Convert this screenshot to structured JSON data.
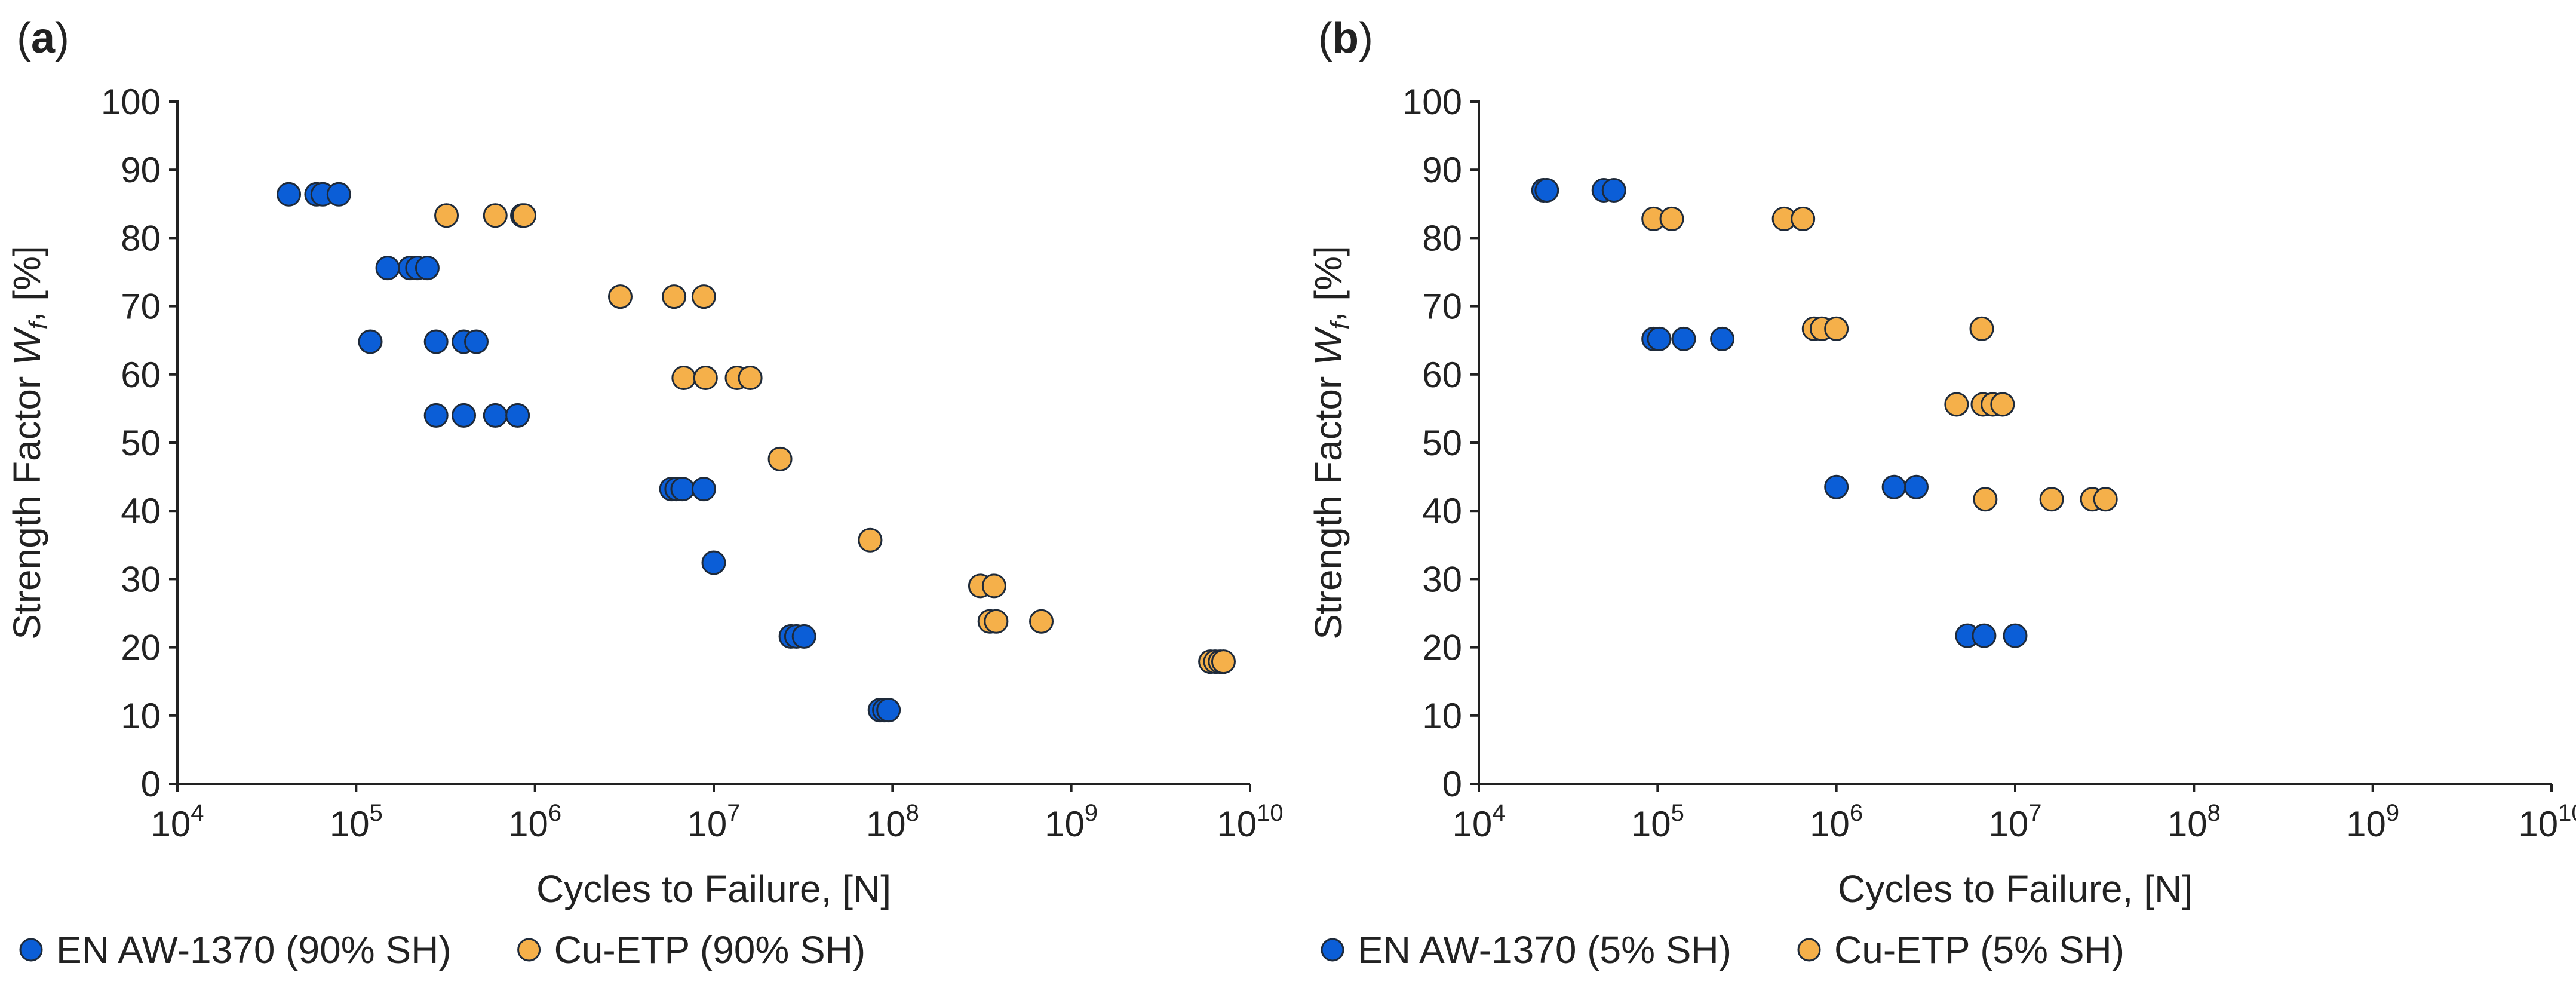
{
  "colors": {
    "aluminium": "#0b5ed7",
    "copper": "#f5b04a",
    "axis": "#222222",
    "marker_edge": "#1e2a3a"
  },
  "chart_data": [
    {
      "panel_label": "(a)",
      "type": "scatter",
      "xscale": "log",
      "xlim": [
        10000,
        10000000000
      ],
      "ylim": [
        0,
        100
      ],
      "x_ticks": [
        10000,
        100000,
        1000000,
        10000000,
        100000000,
        1000000000,
        10000000000
      ],
      "x_tick_labels": [
        {
          "base": "10",
          "exp": "4"
        },
        {
          "base": "10",
          "exp": "5"
        },
        {
          "base": "10",
          "exp": "6"
        },
        {
          "base": "10",
          "exp": "7"
        },
        {
          "base": "10",
          "exp": "8"
        },
        {
          "base": "10",
          "exp": "9"
        },
        {
          "base": "10",
          "exp": "10"
        }
      ],
      "y_ticks": [
        "0",
        "10",
        "20",
        "30",
        "40",
        "50",
        "60",
        "70",
        "80",
        "90",
        "100"
      ],
      "xlabel": "Cycles to Failure, [N]",
      "ylabel": {
        "pre": "Strength Factor ",
        "var": "W",
        "sub": "f",
        "post": ", [%]"
      },
      "grid": false,
      "legend_position": "bottom",
      "series": [
        {
          "name": "EN AW-1370 (90% SH)",
          "color_key": "aluminium",
          "points": [
            [
              42000,
              86.4
            ],
            [
              60000,
              86.4
            ],
            [
              65000,
              86.4
            ],
            [
              80000,
              86.4
            ],
            [
              150000,
              75.6
            ],
            [
              200000,
              75.6
            ],
            [
              220000,
              75.6
            ],
            [
              250000,
              75.6
            ],
            [
              120000,
              64.8
            ],
            [
              280000,
              64.8
            ],
            [
              400000,
              64.8
            ],
            [
              470000,
              64.8
            ],
            [
              280000,
              54.0
            ],
            [
              400000,
              54.0
            ],
            [
              600000,
              54.0
            ],
            [
              800000,
              54.0
            ],
            [
              5800000,
              43.2
            ],
            [
              6200000,
              43.2
            ],
            [
              6700000,
              43.2
            ],
            [
              8800000,
              43.2
            ],
            [
              10000000,
              32.4
            ],
            [
              27000000,
              21.6
            ],
            [
              29000000,
              21.6
            ],
            [
              32000000,
              21.6
            ],
            [
              85000000,
              10.8
            ],
            [
              90000000,
              10.8
            ],
            [
              95000000,
              10.8
            ]
          ]
        },
        {
          "name": "Cu-ETP (90% SH)",
          "color_key": "copper",
          "points": [
            [
              320000,
              83.3
            ],
            [
              600000,
              83.3
            ],
            [
              850000,
              83.3
            ],
            [
              870000,
              83.3
            ],
            [
              3000000,
              71.4
            ],
            [
              6000000,
              71.4
            ],
            [
              8800000,
              71.4
            ],
            [
              6800000,
              59.5
            ],
            [
              9000000,
              59.5
            ],
            [
              13500000,
              59.5
            ],
            [
              16000000,
              59.5
            ],
            [
              23500000,
              47.6
            ],
            [
              75000000,
              35.7
            ],
            [
              310000000,
              29.0
            ],
            [
              370000000,
              29.0
            ],
            [
              350000000,
              23.8
            ],
            [
              380000000,
              23.8
            ],
            [
              680000000,
              23.8
            ],
            [
              6000000000,
              17.9
            ],
            [
              6400000000,
              17.9
            ],
            [
              6800000000,
              17.9
            ],
            [
              7100000000,
              17.9
            ]
          ]
        }
      ]
    },
    {
      "panel_label": "(b)",
      "type": "scatter",
      "xscale": "log",
      "xlim": [
        10000,
        10000000000
      ],
      "ylim": [
        0,
        100
      ],
      "x_ticks": [
        10000,
        100000,
        1000000,
        10000000,
        100000000,
        1000000000,
        10000000000
      ],
      "x_tick_labels": [
        {
          "base": "10",
          "exp": "4"
        },
        {
          "base": "10",
          "exp": "5"
        },
        {
          "base": "10",
          "exp": "6"
        },
        {
          "base": "10",
          "exp": "7"
        },
        {
          "base": "10",
          "exp": "8"
        },
        {
          "base": "10",
          "exp": "9"
        },
        {
          "base": "10",
          "exp": "10"
        }
      ],
      "y_ticks": [
        "0",
        "10",
        "20",
        "30",
        "40",
        "50",
        "60",
        "70",
        "80",
        "90",
        "100"
      ],
      "xlabel": "Cycles to Failure, [N]",
      "ylabel": {
        "pre": "Strength Factor ",
        "var": "W",
        "sub": "f",
        "post": ", [%]"
      },
      "grid": false,
      "legend_position": "bottom",
      "series": [
        {
          "name": "EN AW-1370 (5% SH)",
          "color_key": "aluminium",
          "points": [
            [
              23000,
              87.0
            ],
            [
              24000,
              87.0
            ],
            [
              50000,
              87.0
            ],
            [
              57000,
              87.0
            ],
            [
              95000,
              65.2
            ],
            [
              102000,
              65.2
            ],
            [
              140000,
              65.2
            ],
            [
              230000,
              65.2
            ],
            [
              1000000,
              43.5
            ],
            [
              2100000,
              43.5
            ],
            [
              2800000,
              43.5
            ],
            [
              5400000,
              21.7
            ],
            [
              6700000,
              21.7
            ],
            [
              10000000,
              21.7
            ]
          ]
        },
        {
          "name": "Cu-ETP (5% SH)",
          "color_key": "copper",
          "points": [
            [
              95000,
              82.8
            ],
            [
              120000,
              82.8
            ],
            [
              510000,
              82.8
            ],
            [
              650000,
              82.8
            ],
            [
              750000,
              66.7
            ],
            [
              830000,
              66.7
            ],
            [
              1000000,
              66.7
            ],
            [
              6500000,
              66.7
            ],
            [
              4700000,
              55.6
            ],
            [
              6600000,
              55.6
            ],
            [
              7500000,
              55.6
            ],
            [
              8500000,
              55.6
            ],
            [
              6800000,
              41.7
            ],
            [
              16000000,
              41.7
            ],
            [
              27000000,
              41.7
            ],
            [
              32000000,
              41.7
            ]
          ]
        }
      ]
    }
  ]
}
